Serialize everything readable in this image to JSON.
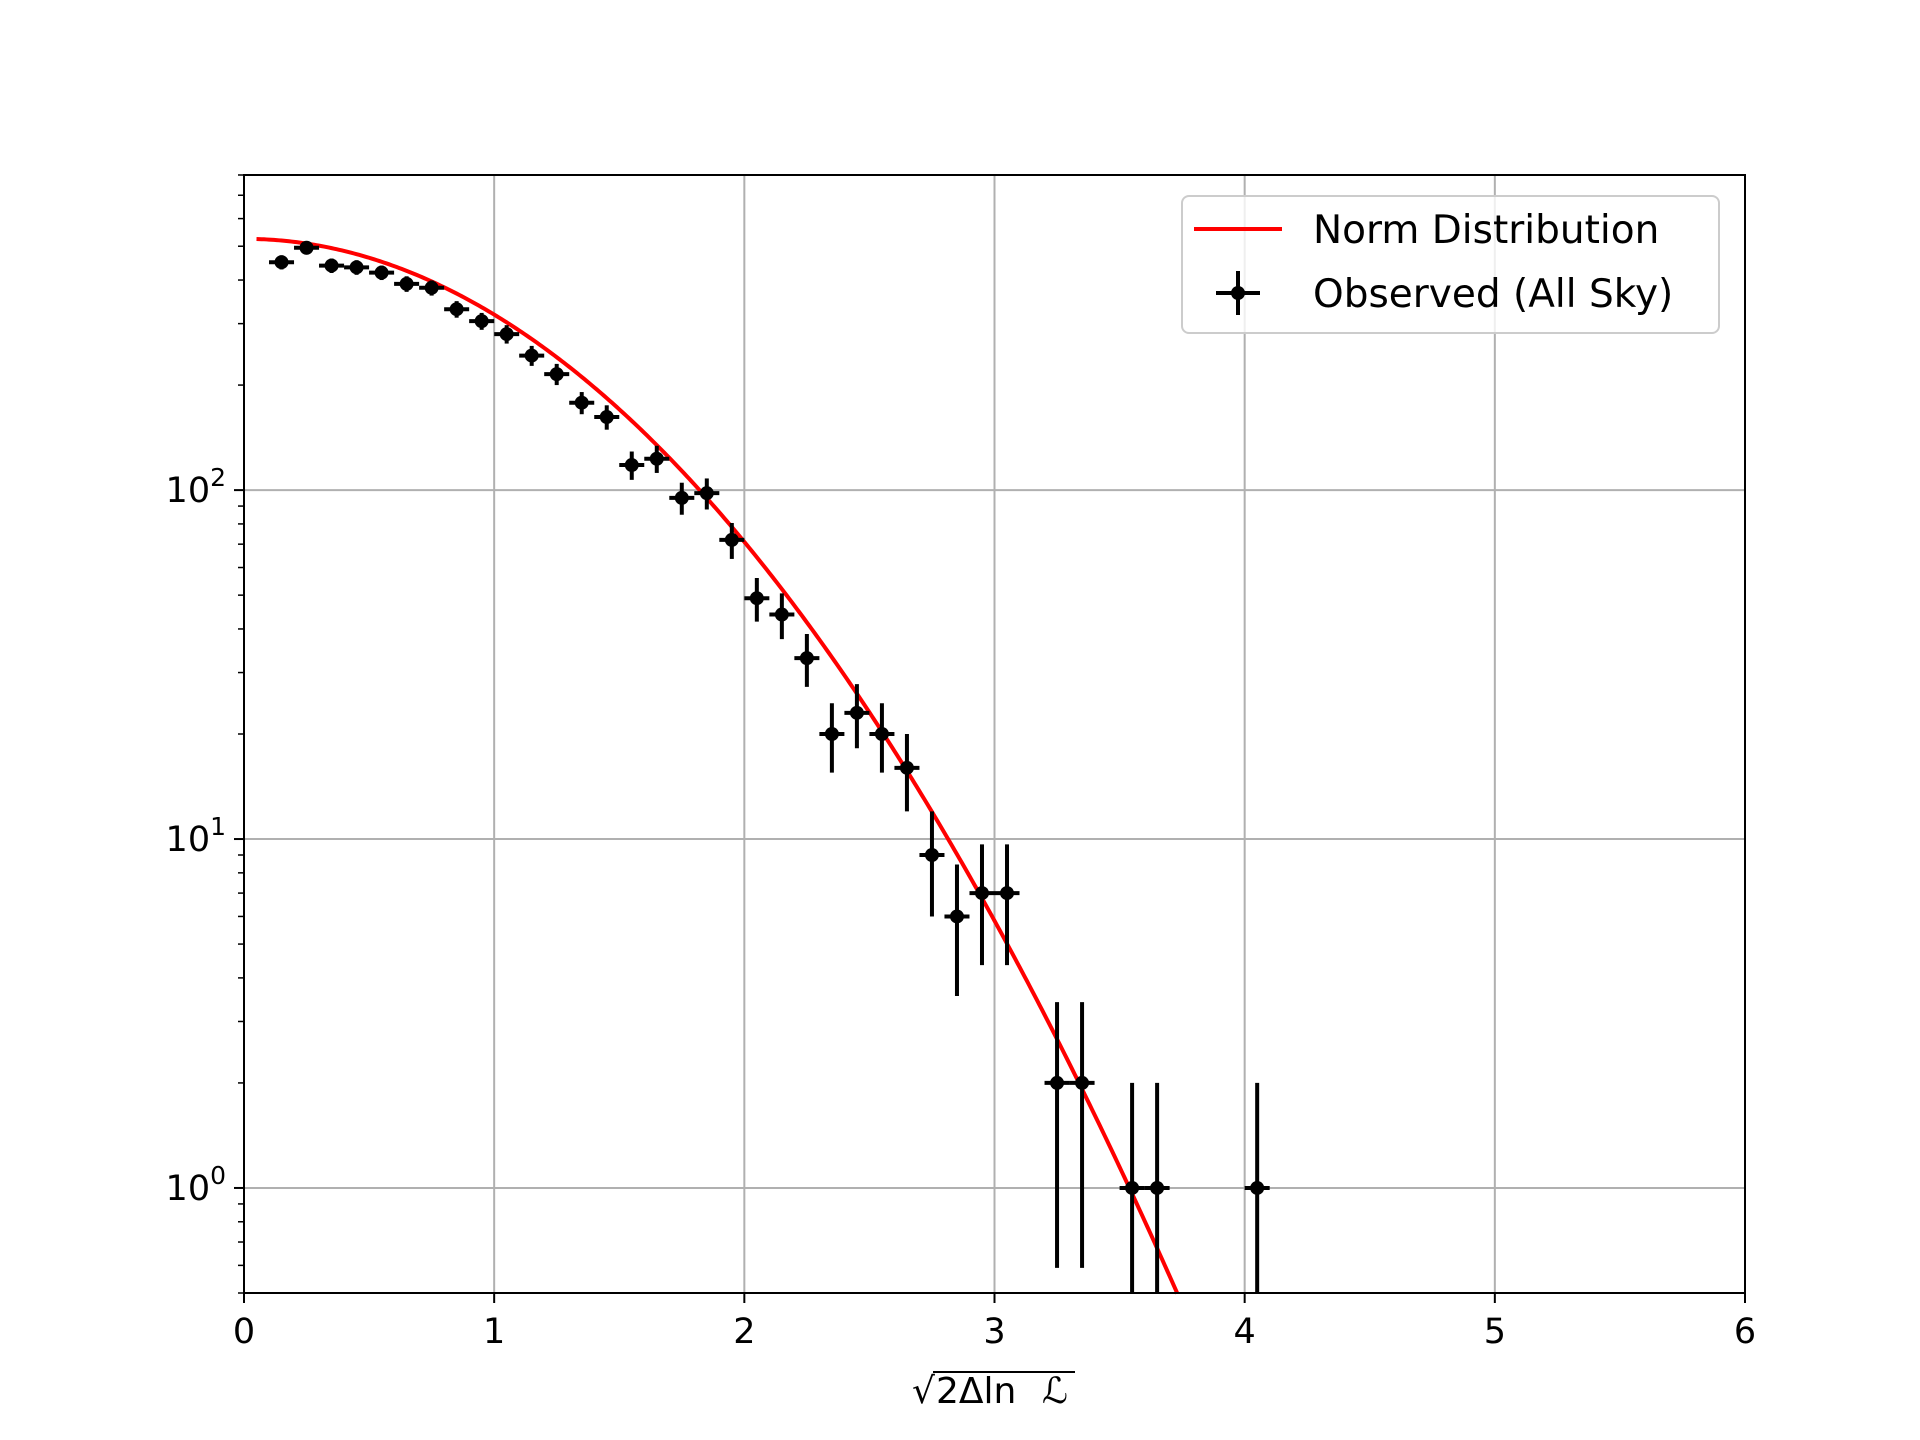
{
  "chart_data": {
    "type": "scatter",
    "title": "",
    "xlabel": "√2Δln ℒ",
    "xlabel_parts": {
      "radical": "√",
      "body": "2Δln ",
      "script": "ℒ"
    },
    "ylabel": "",
    "xlim": [
      0,
      6
    ],
    "ylim": [
      0.5,
      800
    ],
    "yscale": "log",
    "grid": true,
    "legend_position": "top-right",
    "x_ticks": [
      0,
      1,
      2,
      3,
      4,
      5,
      6
    ],
    "x_tick_labels": [
      "0",
      "1",
      "2",
      "3",
      "4",
      "5",
      "6"
    ],
    "y_ticks": [
      {
        "value": 1,
        "base": "10",
        "exp": "0"
      },
      {
        "value": 10,
        "base": "10",
        "exp": "1"
      },
      {
        "value": 100,
        "base": "10",
        "exp": "2"
      }
    ],
    "series": [
      {
        "name": "Norm Distribution",
        "kind": "line",
        "color": "#ff0000",
        "model": "gaussian",
        "amplitude": 525,
        "x_range": [
          0.05,
          3.85
        ]
      },
      {
        "name": "Observed (All Sky)",
        "kind": "errorbar",
        "color": "#000000",
        "x_error": 0.05,
        "points": [
          {
            "x": 0.15,
            "y": 450,
            "yerr": 21
          },
          {
            "x": 0.25,
            "y": 495,
            "yerr": 22
          },
          {
            "x": 0.35,
            "y": 440,
            "yerr": 21
          },
          {
            "x": 0.45,
            "y": 435,
            "yerr": 21
          },
          {
            "x": 0.55,
            "y": 420,
            "yerr": 20
          },
          {
            "x": 0.65,
            "y": 390,
            "yerr": 20
          },
          {
            "x": 0.75,
            "y": 380,
            "yerr": 19
          },
          {
            "x": 0.85,
            "y": 330,
            "yerr": 18
          },
          {
            "x": 0.95,
            "y": 305,
            "yerr": 17
          },
          {
            "x": 1.05,
            "y": 280,
            "yerr": 17
          },
          {
            "x": 1.15,
            "y": 243,
            "yerr": 16
          },
          {
            "x": 1.25,
            "y": 215,
            "yerr": 15
          },
          {
            "x": 1.35,
            "y": 178,
            "yerr": 13
          },
          {
            "x": 1.45,
            "y": 162,
            "yerr": 13
          },
          {
            "x": 1.55,
            "y": 118,
            "yerr": 11
          },
          {
            "x": 1.65,
            "y": 123,
            "yerr": 11
          },
          {
            "x": 1.75,
            "y": 95,
            "yerr": 10
          },
          {
            "x": 1.85,
            "y": 98,
            "yerr": 10
          },
          {
            "x": 1.95,
            "y": 72,
            "yerr": 8.5
          },
          {
            "x": 2.05,
            "y": 49,
            "yerr": 7
          },
          {
            "x": 2.15,
            "y": 44,
            "yerr": 6.6
          },
          {
            "x": 2.25,
            "y": 33,
            "yerr": 5.7
          },
          {
            "x": 2.35,
            "y": 20,
            "yerr": 4.5
          },
          {
            "x": 2.45,
            "y": 23,
            "yerr": 4.8
          },
          {
            "x": 2.55,
            "y": 20,
            "yerr": 4.5
          },
          {
            "x": 2.65,
            "y": 16,
            "yerr": 4
          },
          {
            "x": 2.75,
            "y": 9,
            "yerr": 3
          },
          {
            "x": 2.85,
            "y": 6,
            "yerr": 2.45
          },
          {
            "x": 2.95,
            "y": 7,
            "yerr": 2.65
          },
          {
            "x": 3.05,
            "y": 7,
            "yerr": 2.65
          },
          {
            "x": 3.25,
            "y": 2,
            "yerr": 1.41
          },
          {
            "x": 3.35,
            "y": 2,
            "yerr": 1.41
          },
          {
            "x": 3.55,
            "y": 1,
            "yerr": 1
          },
          {
            "x": 3.65,
            "y": 1,
            "yerr": 1
          },
          {
            "x": 4.05,
            "y": 1,
            "yerr": 1
          }
        ]
      }
    ]
  }
}
